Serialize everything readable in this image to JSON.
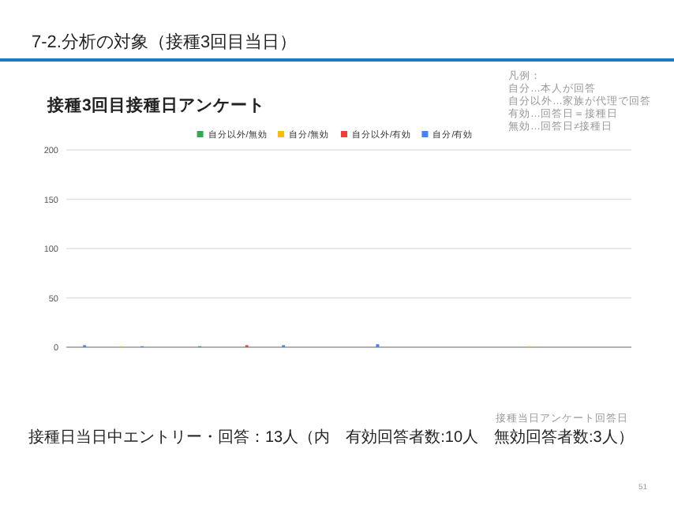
{
  "chart_data": {
    "type": "bar",
    "stacked": true,
    "title": "7-2.分析の対象（接種3回目当日）",
    "subtitle": "接種3回目接種日アンケート",
    "annotations": [
      "凡例：",
      "自分…本人が回答",
      "自分以外…家族が代理で回答",
      "有効…回答日＝接種日",
      "無効…回答日≠接種日",
      "接種当日アンケート回答日",
      "接種日当日中エントリー・回答：13人（内　有効回答者数:10人　無効回答者数:3人）",
      "51"
    ],
    "categories": [
      null,
      null,
      null,
      null,
      null,
      null,
      null,
      null,
      null,
      null,
      null,
      null,
      null,
      null,
      null,
      null,
      null,
      null,
      null,
      null,
      null,
      null,
      null,
      null,
      null,
      null,
      null,
      null,
      null,
      null,
      null,
      null,
      null,
      null,
      null,
      null,
      null,
      null,
      null,
      null,
      null,
      null,
      null,
      null,
      null,
      null,
      null,
      null,
      null,
      null,
      null,
      null,
      null,
      null,
      null,
      null,
      null,
      null,
      null,
      null,
      null,
      null,
      null,
      null,
      null,
      null,
      null,
      null,
      null,
      null,
      null,
      null,
      null,
      null,
      null,
      null,
      null,
      null,
      null,
      null,
      null,
      null,
      null,
      null,
      null,
      null,
      null,
      null,
      null,
      null,
      null,
      null,
      null,
      null,
      null,
      null,
      null,
      null,
      null,
      null,
      null,
      null,
      null,
      null,
      null,
      null,
      null,
      null
    ],
    "series": [
      {
        "name": "自分以外/無効",
        "color": "#34a853",
        "values": [
          0,
          0,
          0,
          0,
          0,
          0,
          0,
          0,
          0,
          0,
          0,
          0,
          0,
          0,
          0,
          0,
          0,
          0,
          0,
          0,
          0,
          0,
          0,
          0,
          0,
          1,
          0,
          0,
          0,
          0,
          0,
          0,
          0,
          0,
          0,
          0,
          0,
          0,
          0,
          0,
          0,
          0,
          0,
          0,
          0,
          0,
          0,
          0,
          0,
          0,
          0,
          0,
          0,
          0,
          0,
          0,
          0,
          0,
          0,
          0,
          0,
          0,
          0,
          0,
          0,
          0,
          0,
          0,
          0,
          0,
          0,
          0,
          0,
          0,
          0,
          0,
          0,
          0,
          0,
          0,
          0,
          0,
          0,
          0,
          0,
          0,
          0,
          0,
          0,
          0,
          0,
          0,
          0,
          0,
          0,
          0,
          0,
          0,
          0,
          0,
          0,
          0,
          0,
          0,
          0,
          0,
          0,
          0
        ]
      },
      {
        "name": "自分/無効",
        "color": "#fbbc04",
        "values": [
          0,
          0,
          0,
          0,
          0,
          0,
          0,
          0,
          0,
          0,
          1,
          0,
          0,
          0,
          0,
          0,
          0,
          0,
          0,
          0,
          0,
          0,
          0,
          0,
          0,
          0,
          0,
          0,
          0,
          0,
          0,
          0,
          0,
          0,
          0,
          0,
          0,
          0,
          0,
          0,
          0,
          0,
          0,
          0,
          0,
          0,
          0,
          0,
          0,
          0,
          0,
          0,
          0,
          0,
          0,
          0,
          0,
          0,
          0,
          0,
          0,
          0,
          0,
          0,
          0,
          0,
          0,
          0,
          0,
          0,
          0,
          0,
          0,
          0,
          0,
          0,
          0,
          0,
          0,
          0,
          0,
          0,
          0,
          0,
          0,
          0,
          0,
          0,
          1,
          0,
          0,
          0,
          0,
          0,
          0,
          0,
          0,
          0,
          0,
          0,
          0,
          0,
          0,
          0,
          0,
          0,
          0,
          0
        ]
      },
      {
        "name": "自分以外/有効",
        "color": "#ea4335",
        "values": [
          0,
          0,
          0,
          0,
          0,
          0,
          0,
          0,
          0,
          0,
          0,
          0,
          0,
          0,
          0,
          0,
          0,
          0,
          0,
          0,
          0,
          0,
          0,
          0,
          0,
          0,
          0,
          0,
          0,
          0,
          0,
          0,
          0,
          0,
          2,
          0,
          0,
          0,
          0,
          0,
          0,
          0,
          0,
          0,
          0,
          0,
          0,
          0,
          0,
          0,
          0,
          0,
          0,
          0,
          0,
          0,
          0,
          0,
          0,
          0,
          0,
          0,
          0,
          0,
          0,
          0,
          0,
          0,
          0,
          0,
          0,
          0,
          0,
          0,
          0,
          0,
          0,
          0,
          0,
          0,
          0,
          0,
          0,
          0,
          0,
          0,
          0,
          0,
          0,
          0,
          0,
          0,
          0,
          0,
          0,
          0,
          0,
          0,
          0,
          0,
          0,
          0,
          0,
          0,
          0,
          0,
          0,
          0
        ]
      },
      {
        "name": "自分/有効",
        "color": "#4285f4",
        "values": [
          0,
          0,
          0,
          2,
          0,
          0,
          0,
          0,
          0,
          0,
          0,
          0,
          0,
          0,
          1,
          0,
          0,
          0,
          0,
          0,
          0,
          0,
          0,
          0,
          0,
          0,
          0,
          0,
          0,
          0,
          0,
          0,
          0,
          0,
          0,
          0,
          0,
          0,
          0,
          0,
          0,
          2,
          0,
          0,
          0,
          0,
          0,
          0,
          0,
          0,
          0,
          0,
          0,
          0,
          0,
          0,
          0,
          0,
          0,
          3,
          0,
          0,
          0,
          0,
          0,
          0,
          0,
          0,
          0,
          0,
          0,
          0,
          0,
          0,
          0,
          0,
          0,
          0,
          0,
          0,
          0,
          0,
          0,
          0,
          0,
          0,
          0,
          0,
          0,
          0,
          0,
          0,
          0,
          0,
          0,
          0,
          0,
          0,
          0,
          0,
          0,
          0,
          0,
          0,
          0,
          0,
          0,
          0
        ]
      }
    ],
    "ylim": [
      0,
      200
    ],
    "yticks": [
      0,
      50,
      100,
      150,
      200
    ],
    "grid": "y",
    "legend": "top"
  }
}
